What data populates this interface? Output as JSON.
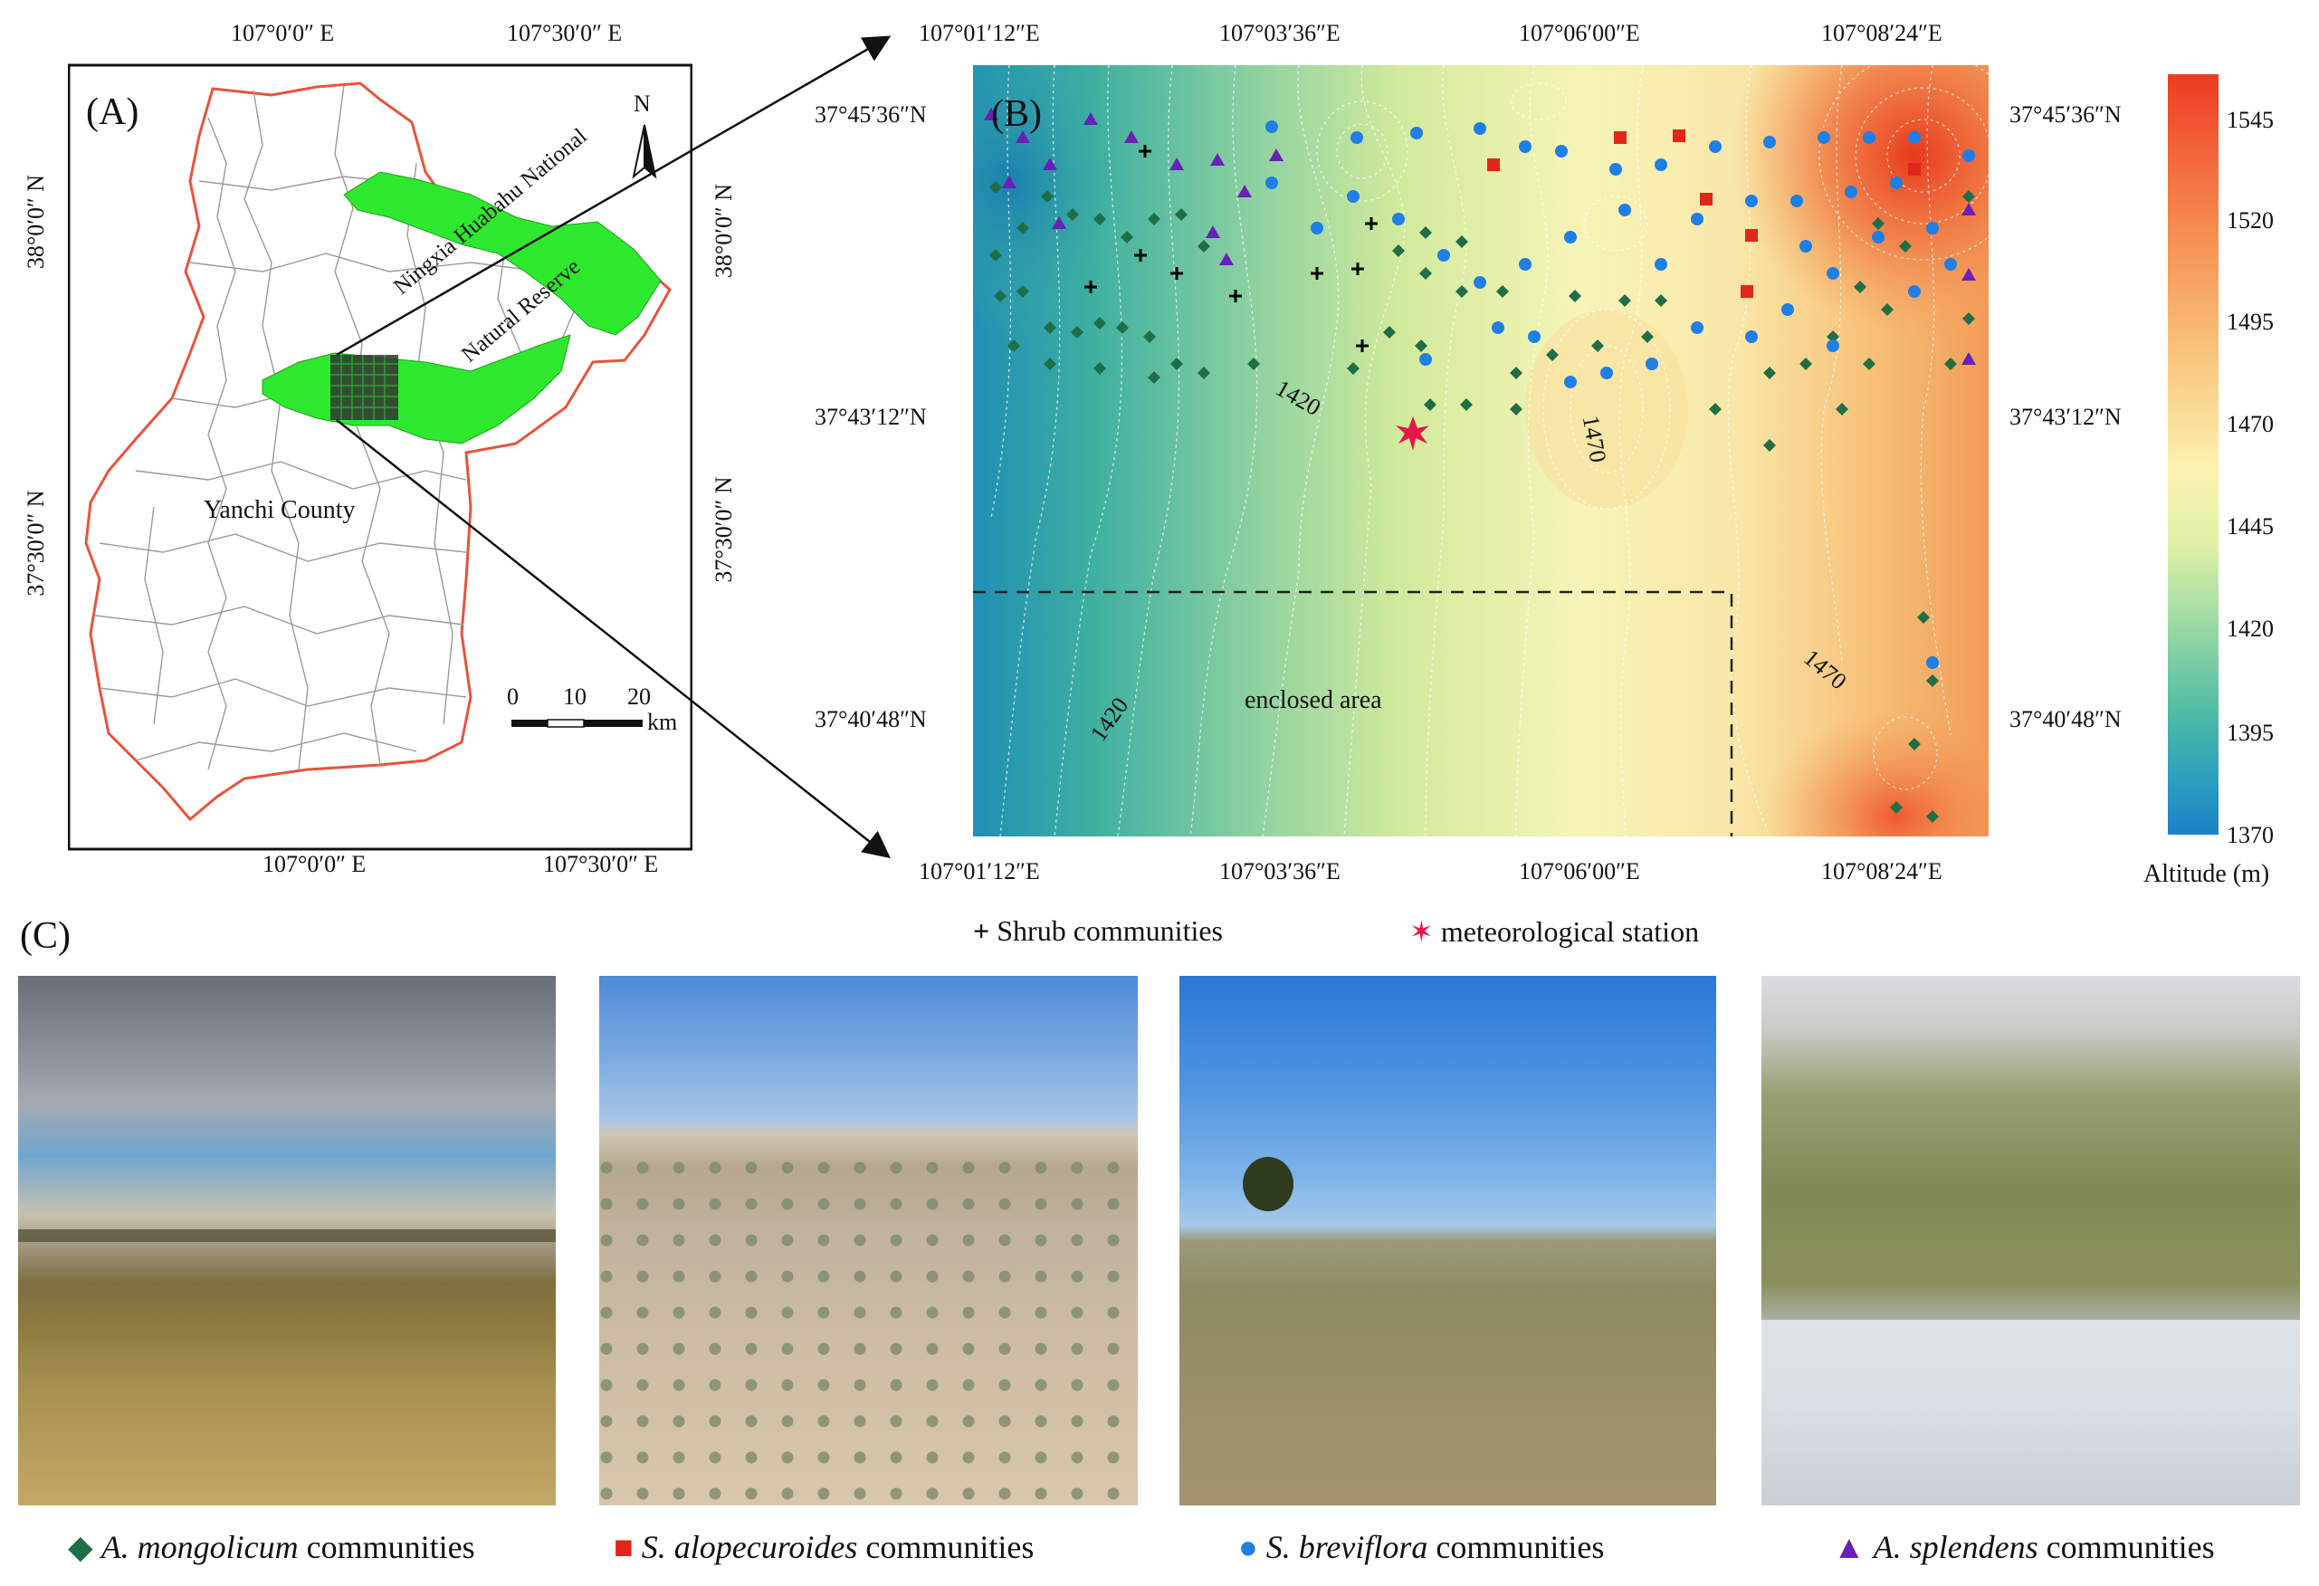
{
  "panelA": {
    "label": "(A)",
    "top_ticks": [
      "107°0′0″ E",
      "107°30′0″ E"
    ],
    "bottom_ticks": [
      "107°0′0″ E",
      "107°30′0″ E"
    ],
    "left_ticks": [
      "38°0′0″ N",
      "37°30′0″ N"
    ],
    "right_ticks": [
      "38°0′0″ N",
      "37°30′0″ N"
    ],
    "county_label": "Yanchi County",
    "reserve_label_1": "Ningxia Huabahu National",
    "reserve_label_2": "Natural Reserve",
    "north": "N",
    "scale_labels": [
      "0",
      "10",
      "20"
    ],
    "scale_unit": "km",
    "colors": {
      "boundary": "#e8533c",
      "reserve": "#2ee82e",
      "townships": "#9a9a9a"
    }
  },
  "panelB": {
    "label": "(B)",
    "top_ticks": [
      "107°01′12″E",
      "107°03′36″E",
      "107°06′00″E",
      "107°08′24″E"
    ],
    "bottom_ticks": [
      "107°01′12″E",
      "107°03′36″E",
      "107°06′00″E",
      "107°08′24″E"
    ],
    "left_ticks": [
      "37°45′36″N",
      "37°43′12″N",
      "37°40′48″N"
    ],
    "right_ticks": [
      "37°45′36″N",
      "37°43′12″N",
      "37°40′48″N"
    ],
    "contour_labels": [
      "1420",
      "1470",
      "1470",
      "1420"
    ],
    "enclosed_label": "enclosed area",
    "colorbar": {
      "title": "Altitude (m)",
      "ticks": [
        "1545",
        "1520",
        "1495",
        "1470",
        "1445",
        "1420",
        "1395",
        "1370"
      ],
      "min": 1370,
      "max": 1555
    }
  },
  "legend": {
    "shrub": "Shrub communities",
    "station": "meteorological station",
    "mongolicum_species": "A. mongolicum",
    "alopecuroides_species": "S. alopecuroides",
    "breviflora_species": "S. breviflora",
    "splendens_species": "A. splendens",
    "communities": "communities",
    "colors": {
      "mongolicum": "#1f6e47",
      "alopecuroides": "#e2261b",
      "breviflora": "#1e7fe6",
      "splendens": "#6a1fb8",
      "shrub": "#000000",
      "station": "#e8154a"
    }
  },
  "panelC": {
    "label": "(C)"
  }
}
